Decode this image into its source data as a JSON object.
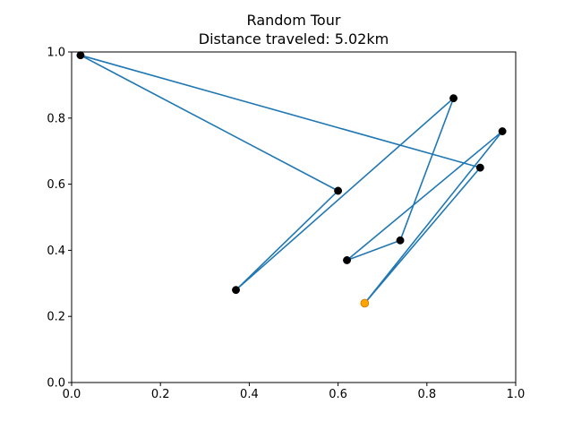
{
  "chart_data": {
    "type": "line",
    "title": "Random Tour",
    "subtitle": "Distance traveled: 5.02km",
    "xlabel": "",
    "ylabel": "",
    "xlim": [
      0.0,
      1.0
    ],
    "ylim": [
      0.0,
      1.0
    ],
    "x_ticks": [
      "0.0",
      "0.2",
      "0.4",
      "0.6",
      "0.8",
      "1.0"
    ],
    "y_ticks": [
      "0.0",
      "0.2",
      "0.4",
      "0.6",
      "0.8",
      "1.0"
    ],
    "grid": false,
    "series": [
      {
        "line_color": "#1f77b4",
        "marker_color": "#000000",
        "start_marker_color": "#ffa500",
        "points": [
          {
            "x": 0.66,
            "y": 0.24
          },
          {
            "x": 0.97,
            "y": 0.76
          },
          {
            "x": 0.62,
            "y": 0.37
          },
          {
            "x": 0.74,
            "y": 0.43
          },
          {
            "x": 0.86,
            "y": 0.86
          },
          {
            "x": 0.37,
            "y": 0.28
          },
          {
            "x": 0.6,
            "y": 0.58
          },
          {
            "x": 0.02,
            "y": 0.99
          },
          {
            "x": 0.92,
            "y": 0.65
          },
          {
            "x": 0.66,
            "y": 0.24
          }
        ]
      }
    ]
  }
}
